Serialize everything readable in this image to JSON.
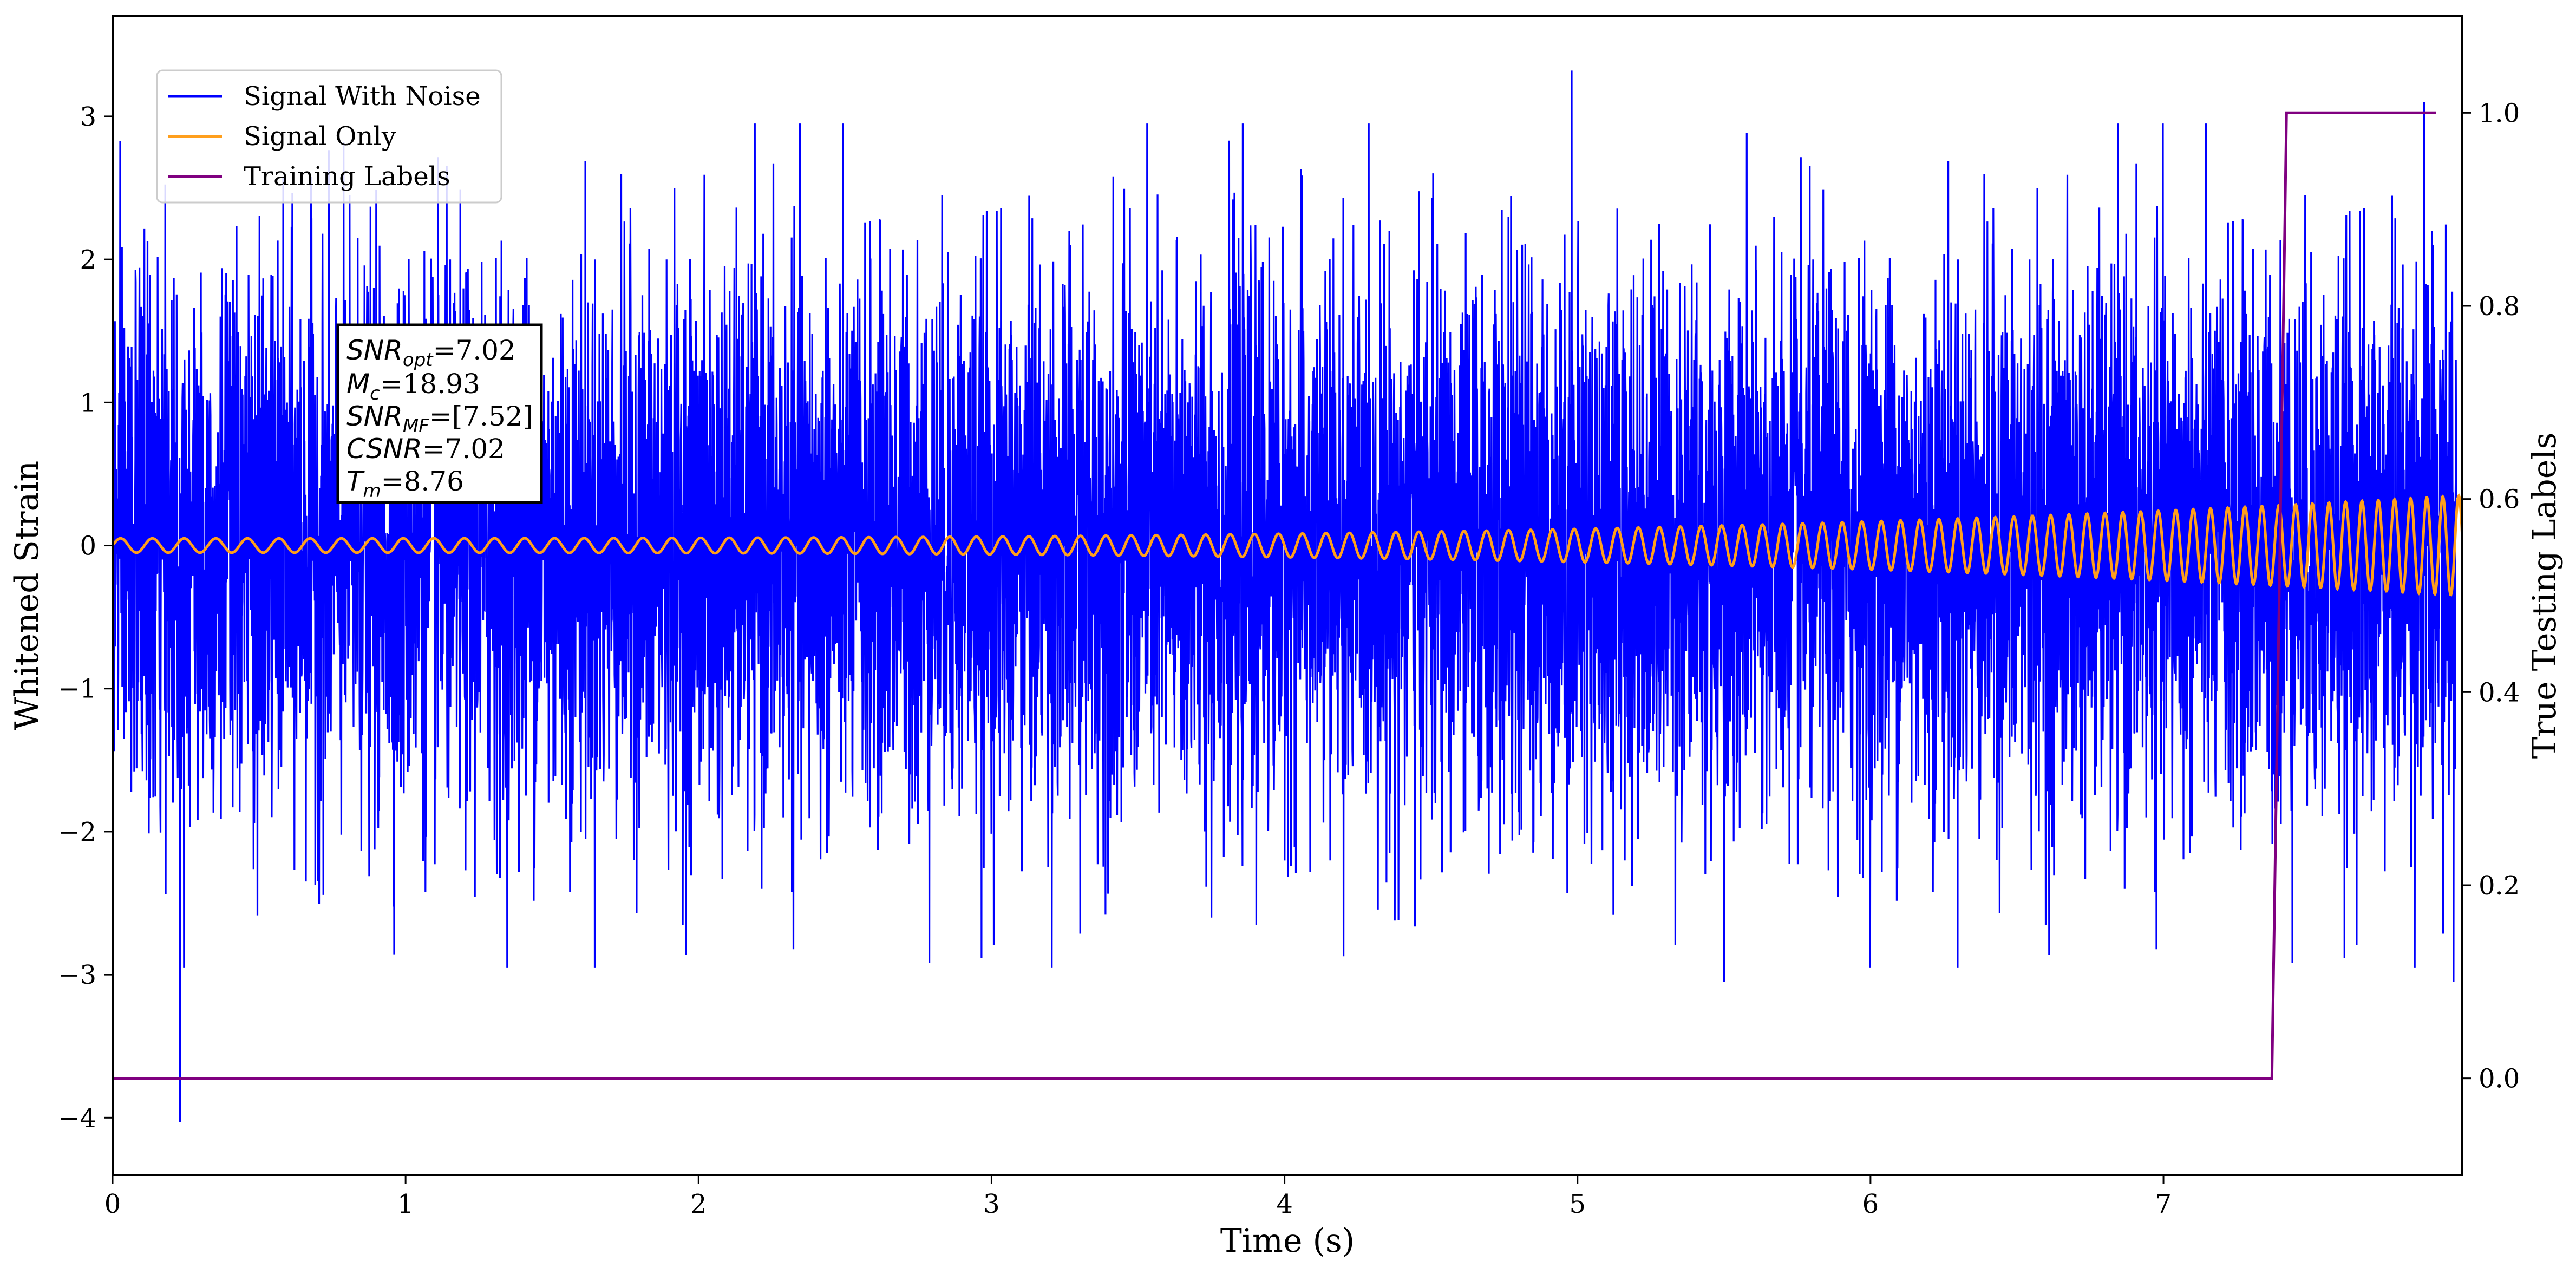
{
  "chart_data": {
    "type": "line",
    "xlabel": "Time (s)",
    "ylabel": "Whitened Strain",
    "y2label": "True Testing Labels",
    "xlim": [
      0,
      8.02
    ],
    "ylim": [
      -4.4,
      3.7
    ],
    "y2lim": [
      -0.1,
      1.1
    ],
    "x_ticks": [
      "0",
      "1",
      "2",
      "3",
      "4",
      "5",
      "6",
      "7"
    ],
    "y_ticks": [
      {
        "value": 3,
        "label": "3"
      },
      {
        "value": 2,
        "label": "2"
      },
      {
        "value": 1,
        "label": "1"
      },
      {
        "value": 0,
        "label": "0"
      },
      {
        "value": -1,
        "label": "−1"
      },
      {
        "value": -2,
        "label": "−2"
      },
      {
        "value": -3,
        "label": "−3"
      },
      {
        "value": -4,
        "label": "−4"
      }
    ],
    "y2_ticks": [
      {
        "value": 1.0,
        "label": "1.0"
      },
      {
        "value": 0.8,
        "label": "0.8"
      },
      {
        "value": 0.6,
        "label": "0.6"
      },
      {
        "value": 0.4,
        "label": "0.4"
      },
      {
        "value": 0.2,
        "label": "0.2"
      },
      {
        "value": 0.0,
        "label": "0.0"
      }
    ],
    "legend_position": "top-left",
    "grid": false,
    "series": [
      {
        "name": "Signal With Noise",
        "color": "#0000ff",
        "axis": "left",
        "description_stats": {
          "approx_std": 0.95,
          "min": -4.03,
          "max": 3.32,
          "min_at_x": 0.23,
          "max_at_x": 4.98
        },
        "notable_points": [
          [
            0.23,
            -4.03
          ],
          [
            4.98,
            3.32
          ],
          [
            7.89,
            3.1
          ],
          [
            5.5,
            -3.05
          ],
          [
            7.99,
            -3.05
          ]
        ]
      },
      {
        "name": "Signal Only",
        "color": "#ff9f1c",
        "axis": "left",
        "amplitude_start": 0.05,
        "amplitude_end": 0.35,
        "cycles_approx": 110
      },
      {
        "name": "Training Labels",
        "color": "#800080",
        "axis": "right",
        "x": [
          0,
          7.37,
          7.42,
          7.93
        ],
        "y": [
          0,
          0,
          1,
          1
        ]
      }
    ],
    "annotation": {
      "lines": [
        {
          "symbol": "SNR",
          "sub": "opt",
          "value": "=7.02"
        },
        {
          "symbol": "M",
          "sub": "c",
          "value": "=18.93"
        },
        {
          "symbol": "SNR",
          "sub": "MF",
          "value": "=[7.52]"
        },
        {
          "symbol": "CSNR",
          "sub": "",
          "value": "=7.02"
        },
        {
          "symbol": "T",
          "sub": "m",
          "value": "=8.76"
        }
      ]
    }
  },
  "legend": {
    "items": [
      {
        "label": "Signal With Noise",
        "color": "#0000ff"
      },
      {
        "label": "Signal Only",
        "color": "#ff9f1c"
      },
      {
        "label": "Training Labels",
        "color": "#800080"
      }
    ]
  }
}
